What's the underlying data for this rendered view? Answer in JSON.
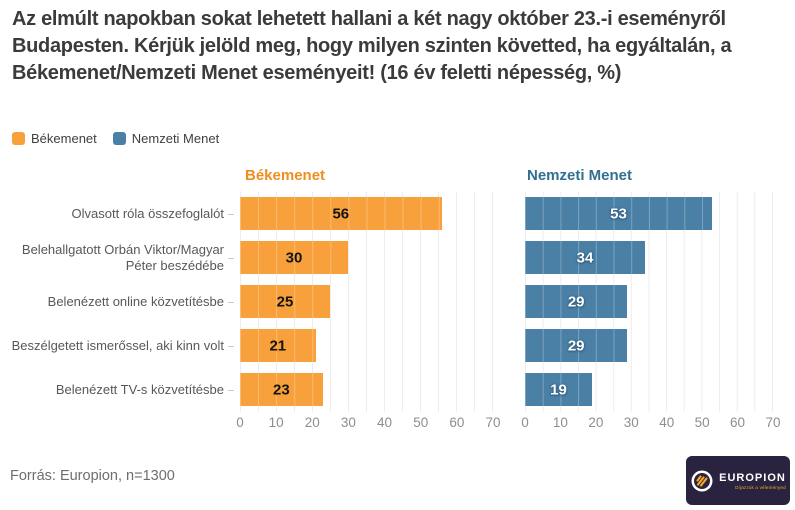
{
  "header": {
    "title": "Az elmúlt napokban sokat lehetett hallani a két nagy október 23.-i eseményről Budapesten. Kérjük jelöld meg, hogy milyen szinten követted, ha egyáltalán, a Békemenet/Nemzeti Menet eseményeit! (16 év feletti népesség, %)"
  },
  "legend": {
    "items": [
      {
        "label": "Békemenet",
        "color": "#f8a13c"
      },
      {
        "label": "Nemzeti Menet",
        "color": "#4a80a5"
      }
    ]
  },
  "chart_data": {
    "type": "bar",
    "orientation": "horizontal",
    "categories": [
      "Olvasott róla összefoglalót",
      "Belehallgatott Orbán Viktor/Magyar Péter beszédébe",
      "Belenézett online közvetítésbe",
      "Beszélgetett ismerőssel, aki kinn volt",
      "Belenézett TV-s közvetítésbe"
    ],
    "series": [
      {
        "name": "Békemenet",
        "values": [
          56,
          30,
          25,
          21,
          23
        ],
        "bar_color": "#f8a13c",
        "title_color": "#ef8e1f",
        "value_label_color": "#141414",
        "value_label_halo": "rgba(248,161,60,0.9)"
      },
      {
        "name": "Nemzeti Menet",
        "values": [
          53,
          34,
          29,
          29,
          19
        ],
        "bar_color": "#4a80a5",
        "title_color": "#31708f",
        "value_label_color": "#ffffff",
        "value_label_halo": "rgba(25,60,95,0.55)"
      }
    ],
    "xlim": [
      0,
      70
    ],
    "x_ticks": [
      0,
      10,
      20,
      30,
      40,
      50,
      60,
      70
    ],
    "grid": "vertical minor gridlines every 5, light gray, drawn over bars",
    "legend_position": "top-left",
    "value_labels": "centered inside bars"
  },
  "footer": {
    "source": "Forrás: Europion, n=1300"
  },
  "logo": {
    "name": "EUROPION",
    "tagline": "Díjazzuk a véleményed",
    "bg_color": "#2a2340",
    "accent_color": "#f5a623"
  }
}
